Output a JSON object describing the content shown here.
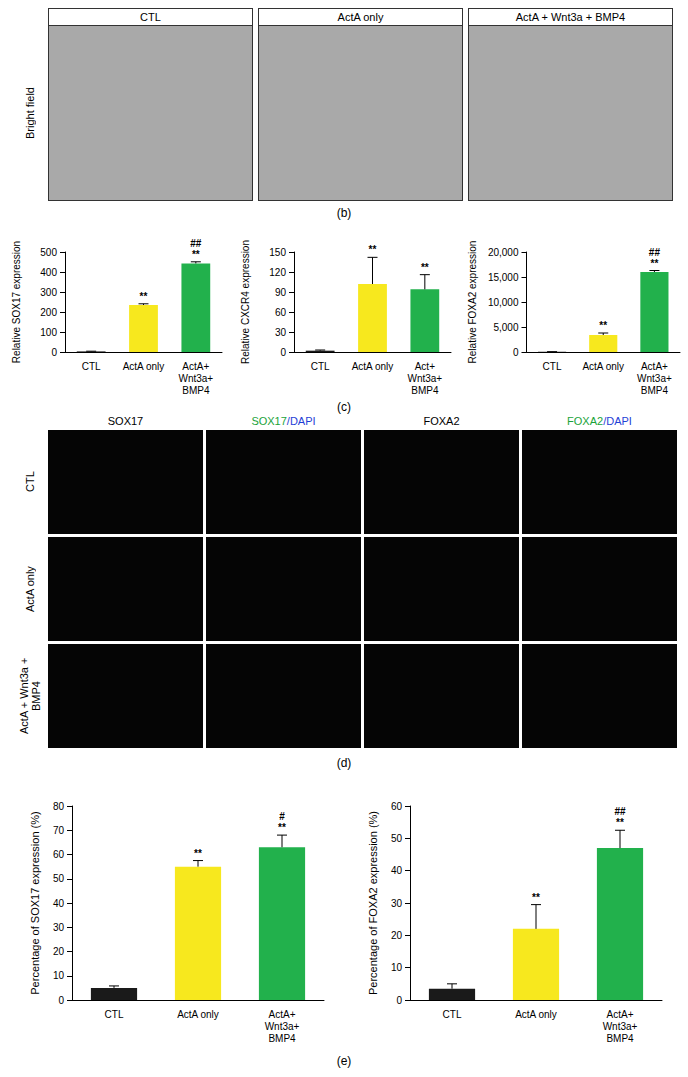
{
  "figure": {
    "panel_labels": {
      "b": "(b)",
      "c": "(c)",
      "d": "(d)",
      "e": "(e)"
    },
    "bright_field": {
      "row_label": "Bright field",
      "columns": [
        "CTL",
        "ActA only",
        "ActA + Wnt3a + BMP4"
      ]
    },
    "immunofluorescence": {
      "columns": [
        "SOX17",
        "SOX17/DAPI",
        "FOXA2",
        "FOXA2/DAPI"
      ],
      "rows": [
        "CTL",
        "ActA only",
        "ActA + Wnt3a + BMP4"
      ]
    }
  },
  "chart_data": [
    {
      "type": "bar",
      "y_label": "Relative SOX17 expression",
      "categories": [
        "CTL",
        "ActA only",
        "ActA+\nWnt3a+\nBMP4"
      ],
      "values": [
        3,
        235,
        443
      ],
      "errors": [
        1,
        6,
        8
      ],
      "colors": [
        "#1a1a1a",
        "#f7e81e",
        "#22b14c"
      ],
      "significance": [
        [],
        [
          "**"
        ],
        [
          "##",
          "**"
        ]
      ],
      "ylim": [
        0,
        500
      ],
      "yticks": [
        0,
        100,
        200,
        300,
        400,
        500
      ],
      "grid": false
    },
    {
      "type": "bar",
      "y_label": "Relative CXCR4 expression",
      "categories": [
        "CTL",
        "ActA only",
        "Act+\nWnt3a+\nBMP4"
      ],
      "values": [
        2,
        102,
        94
      ],
      "errors": [
        1,
        40,
        22
      ],
      "colors": [
        "#1a1a1a",
        "#f7e81e",
        "#22b14c"
      ],
      "significance": [
        [],
        [
          "**"
        ],
        [
          "**"
        ]
      ],
      "ylim": [
        0,
        150
      ],
      "yticks": [
        0,
        30,
        60,
        90,
        120,
        150
      ],
      "grid": false
    },
    {
      "type": "bar",
      "y_label": "Relative FOXA2 expression",
      "categories": [
        "CTL",
        "ActA only",
        "ActA+\nWnt3a+\nBMP4"
      ],
      "values": [
        50,
        3400,
        16000
      ],
      "errors": [
        20,
        400,
        300
      ],
      "colors": [
        "#1a1a1a",
        "#f7e81e",
        "#22b14c"
      ],
      "significance": [
        [],
        [
          "**"
        ],
        [
          "##",
          "**"
        ]
      ],
      "ylim": [
        0,
        20000
      ],
      "yticks": [
        0,
        {
          "value": 5000,
          "label": "5,000"
        },
        {
          "value": 10000,
          "label": "10,000"
        },
        {
          "value": 15000,
          "label": "15,000"
        },
        {
          "value": 20000,
          "label": "20,000"
        }
      ],
      "grid": false
    },
    {
      "type": "bar",
      "y_label": "Percentage of SOX17 expression (%)",
      "categories": [
        "CTL",
        "ActA only",
        "ActA+\nWnt3a+\nBMP4"
      ],
      "values": [
        5,
        55,
        63
      ],
      "errors": [
        0.8,
        2.5,
        5
      ],
      "colors": [
        "#1a1a1a",
        "#f7e81e",
        "#22b14c"
      ],
      "significance": [
        [],
        [
          "**"
        ],
        [
          "#",
          "**"
        ]
      ],
      "ylim": [
        0,
        80
      ],
      "yticks": [
        0,
        10,
        20,
        30,
        40,
        50,
        60,
        70,
        80
      ],
      "grid": false
    },
    {
      "type": "bar",
      "y_label": "Percentage of FOXA2 expression (%)",
      "categories": [
        "CTL",
        "ActA only",
        "ActA+\nWnt3a+\nBMP4"
      ],
      "values": [
        3.5,
        22,
        47
      ],
      "errors": [
        1.5,
        7.5,
        5.5
      ],
      "colors": [
        "#1a1a1a",
        "#f7e81e",
        "#22b14c"
      ],
      "significance": [
        [],
        [
          "**"
        ],
        [
          "##",
          "**"
        ]
      ],
      "ylim": [
        0,
        60
      ],
      "yticks": [
        0,
        10,
        20,
        30,
        40,
        50,
        60
      ],
      "grid": false
    }
  ]
}
